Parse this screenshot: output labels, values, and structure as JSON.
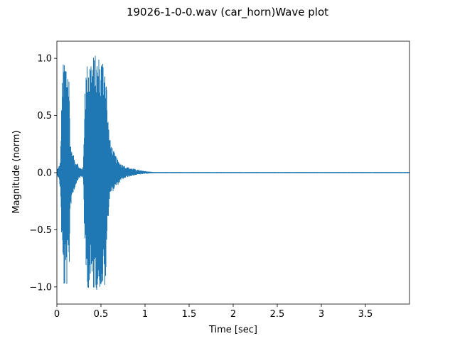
{
  "chart_data": {
    "type": "line",
    "title": "19026-1-0-0.wav (car_horn)Wave plot",
    "xlabel": "Time [sec]",
    "ylabel": "Magnitude (norm)",
    "xlim": [
      0,
      4.0
    ],
    "ylim": [
      -1.15,
      1.15
    ],
    "x_ticks": [
      0,
      0.5,
      1,
      1.5,
      2,
      2.5,
      3,
      3.5
    ],
    "x_tick_labels": [
      "0",
      "0.5",
      "1",
      "1.5",
      "2",
      "2.5",
      "3",
      "3.5"
    ],
    "y_ticks": [
      1.0,
      0.5,
      0.0,
      -0.5,
      -1.0
    ],
    "y_tick_labels": [
      "1.0",
      "0.5",
      "0.0",
      "−0.5",
      "−1.0"
    ],
    "grid": false,
    "series": [
      {
        "color": "#1f77b4",
        "envelope": {
          "x": [
            0.0,
            0.02,
            0.04,
            0.06,
            0.08,
            0.1,
            0.12,
            0.14,
            0.15,
            0.17,
            0.19,
            0.21,
            0.23,
            0.25,
            0.28,
            0.3,
            0.32,
            0.34,
            0.36,
            0.4,
            0.45,
            0.5,
            0.54,
            0.56,
            0.57,
            0.6,
            0.65,
            0.7,
            0.75,
            0.8,
            0.85,
            0.9,
            0.95,
            1.0,
            1.05,
            1.1,
            4.0
          ],
          "upper": [
            0.03,
            0.05,
            0.1,
            0.85,
            1.02,
            1.03,
            1.0,
            0.85,
            0.32,
            0.18,
            0.15,
            0.1,
            0.1,
            0.05,
            0.04,
            0.05,
            0.9,
            0.95,
            1.03,
            1.04,
            1.03,
            1.03,
            1.03,
            0.95,
            0.6,
            0.3,
            0.18,
            0.1,
            0.07,
            0.05,
            0.04,
            0.03,
            0.02,
            0.015,
            0.01,
            0.005,
            0.005
          ],
          "lower": [
            -0.02,
            -0.05,
            -0.15,
            -0.8,
            -1.03,
            -1.05,
            -0.97,
            -0.9,
            -0.35,
            -0.22,
            -0.18,
            -0.12,
            -0.08,
            -0.05,
            -0.04,
            -0.05,
            -0.85,
            -1.0,
            -1.02,
            -1.04,
            -1.03,
            -1.02,
            -1.04,
            -0.98,
            -0.55,
            -0.2,
            -0.15,
            -0.1,
            -0.06,
            -0.04,
            -0.03,
            -0.02,
            -0.015,
            -0.01,
            -0.008,
            -0.004,
            -0.004
          ]
        }
      }
    ]
  }
}
